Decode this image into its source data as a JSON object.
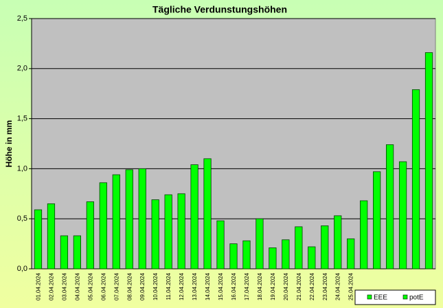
{
  "chart_data": {
    "type": "bar",
    "title": "Tägliche Verdunstungshöhen",
    "y_label": "Höhe in mm",
    "categories": [
      "01.04.2024",
      "02.04.2024",
      "03.04.2024",
      "04.04.2024",
      "05.04.2024",
      "06.04.2024",
      "07.04.2024",
      "08.04.2024",
      "09.04.2024",
      "10.04.2024",
      "11.04.2024",
      "12.04.2024",
      "13.04.2024",
      "14.04.2024",
      "15.04.2024",
      "16.04.2024",
      "17.04.2024",
      "18.04.2024",
      "19.04.2024",
      "20.04.2024",
      "21.04.2024",
      "22.04.2024",
      "23.04.2024",
      "24.04.2024",
      "25.04.2024",
      null,
      null,
      null,
      null,
      null,
      null
    ],
    "series": [
      {
        "name": "EEE",
        "color": "#00ff00",
        "values": [
          null,
          null,
          null,
          null,
          null,
          null,
          null,
          null,
          null,
          null,
          null,
          null,
          null,
          null,
          null,
          null,
          null,
          null,
          null,
          null,
          null,
          null,
          null,
          null,
          null,
          null,
          null,
          null,
          null,
          null,
          null
        ]
      },
      {
        "name": "potE",
        "color": "#00ff00",
        "values": [
          0.59,
          0.65,
          0.33,
          0.33,
          0.67,
          0.86,
          0.94,
          0.99,
          1.0,
          0.69,
          0.74,
          0.75,
          1.04,
          1.1,
          0.48,
          0.25,
          0.28,
          0.5,
          0.21,
          0.29,
          0.42,
          0.22,
          0.43,
          0.53,
          0.3,
          0.68,
          0.97,
          1.24,
          1.07,
          1.79,
          2.16
        ]
      }
    ],
    "ylim": [
      0,
      2.5
    ],
    "yticks": [
      {
        "value": 0,
        "label": "0,0"
      },
      {
        "value": 0.5,
        "label": "0,5"
      },
      {
        "value": 1,
        "label": "1,0"
      },
      {
        "value": 1.5,
        "label": "1,5"
      },
      {
        "value": 2,
        "label": "2,0"
      },
      {
        "value": 2.5,
        "label": "2,5"
      }
    ],
    "grid": true,
    "legend": "bottom-right"
  }
}
